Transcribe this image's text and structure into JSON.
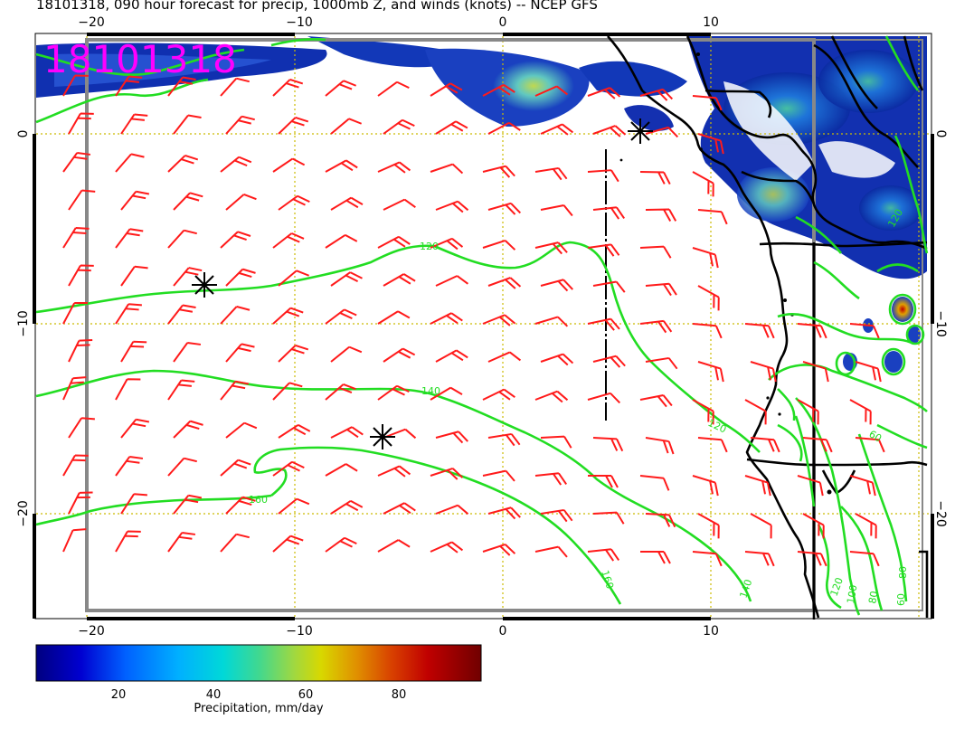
{
  "title": "18101318, 090 hour forecast for precip, 1000mb Z, and winds (knots) -- NCEP GFS",
  "stamp": "18101318",
  "lon_ticks": [
    "−20",
    "−10",
    "0",
    "10"
  ],
  "lat_ticks": [
    "0",
    "−10",
    "−20"
  ],
  "contour_labels": [
    "120",
    "140",
    "120",
    "160",
    "160",
    "140",
    "60",
    "80",
    "100",
    "120",
    "80",
    "60",
    "120"
  ],
  "colorbar": {
    "label": "Precipitation, mm/day",
    "ticks": [
      "20",
      "40",
      "60",
      "80"
    ],
    "colors": [
      "#000080",
      "#0000cd",
      "#0050ff",
      "#00a0ff",
      "#00d8e0",
      "#30d890",
      "#90d840",
      "#d8d800",
      "#e09000",
      "#d84000",
      "#c00000",
      "#800000"
    ]
  },
  "colors": {
    "contour": "#22dd22",
    "barb": "#ff1a1a",
    "coast": "#000000",
    "stamp": "#ff00ff",
    "grid": "#ccbb00"
  }
}
